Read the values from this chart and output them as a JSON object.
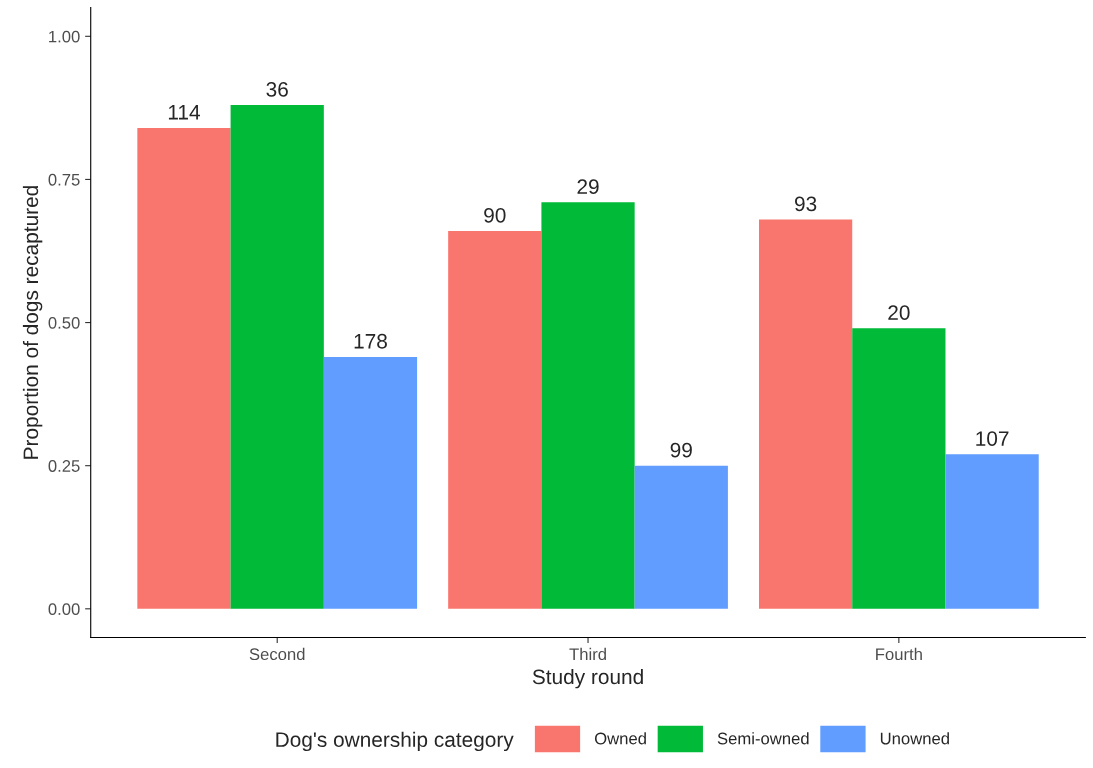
{
  "chart_data": {
    "type": "bar",
    "xlabel": "Study round",
    "ylabel": "Proportion of dogs recaptured",
    "legend_title": "Dog's ownership category",
    "categories": [
      "Second",
      "Third",
      "Fourth"
    ],
    "series": [
      {
        "name": "Owned",
        "color": "#f8766d",
        "values": [
          0.84,
          0.66,
          0.68
        ]
      },
      {
        "name": "Semi-owned",
        "color": "#00ba38",
        "values": [
          0.88,
          0.71,
          0.49
        ]
      },
      {
        "name": "Unowned",
        "color": "#619cff",
        "values": [
          0.44,
          0.25,
          0.27
        ]
      }
    ],
    "annotations": [
      "114",
      "36",
      "178",
      "90",
      "29",
      "99",
      "93",
      "20",
      "107"
    ],
    "ylim": [
      -0.05,
      1.05
    ],
    "yticks": [
      {
        "value": 0,
        "label": "0.00"
      },
      {
        "value": 0.25,
        "label": "0.25"
      },
      {
        "value": 0.5,
        "label": "0.50"
      },
      {
        "value": 0.75,
        "label": "0.75"
      },
      {
        "value": 1,
        "label": "1.00"
      }
    ],
    "grid": false,
    "legend": "bottom"
  }
}
